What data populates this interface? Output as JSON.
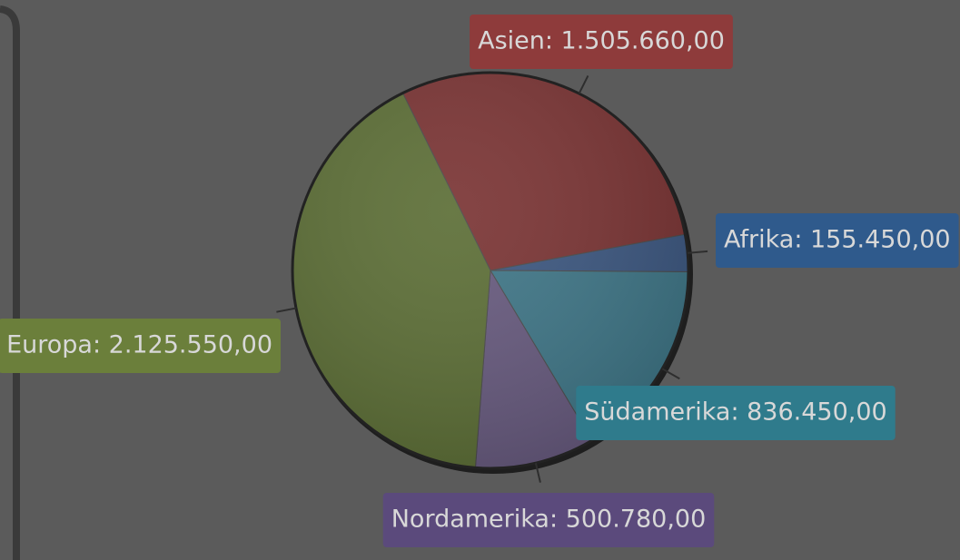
{
  "chart_data": {
    "type": "pie",
    "values": [
      1505660,
      155450,
      836450,
      500780,
      2125550
    ],
    "value_labels": [
      "Asien: 1.505.660,00",
      "Afrika: 155.450,00",
      "Südamerika: 836.450,00",
      "Nordamerika: 500.780,00",
      "Europa: 2.125.550,00"
    ],
    "colors": [
      "#7a3434",
      "#3c5780",
      "#3f7687",
      "#675a7e",
      "#5c6e36"
    ],
    "label_colors": [
      "#8e3b3b",
      "#2f5a8c",
      "#2f7b8c",
      "#5b4a7c",
      "#6b7f3b"
    ]
  }
}
